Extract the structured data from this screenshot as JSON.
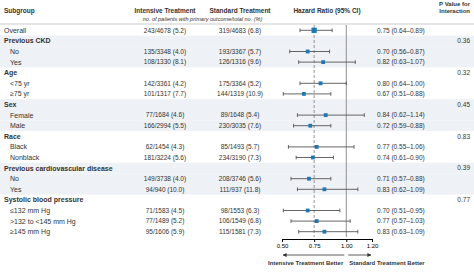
{
  "chart_data": {
    "type": "forest",
    "title": "Hazard Ratio (95% CI)",
    "subtitle": "no. of patients with primary outcome/total no. (%)",
    "category_label": "Subgroup",
    "categories": [
      "Overall",
      "Previous CKD",
      "No",
      "Yes",
      "Age",
      "<75 yr",
      "≥75 yr",
      "Sex",
      "Female",
      "Male",
      "Race",
      "Black",
      "Nonblack",
      "Previous cardiovascular disease",
      "No",
      "Yes",
      "Systolic blood pressure",
      "≤132 mm Hg",
      ">132 to <145 mm Hg",
      "≥145 mm Hg"
    ],
    "columns": [
      {
        "name": "Intensive Treatment",
        "values": [
          "243/4678 (5.2)",
          null,
          "135/3348 (4.0)",
          "108/1330 (8.1)",
          null,
          "142/3361 (4.2)",
          "101/1317 (7.7)",
          null,
          "77/1684 (4.6)",
          "166/2994 (5.5)",
          null,
          "62/1454 (4.3)",
          "181/3224 (5.6)",
          null,
          "149/3738 (4.0)",
          "94/940 (10.0)",
          null,
          "71/1583 (4.5)",
          "77/1489 (5.2)",
          "95/1606 (5.9)"
        ]
      },
      {
        "name": "Standard Treatment",
        "values": [
          "319/4683 (6.8)",
          null,
          "193/3367 (5.7)",
          "126/1316 (9.6)",
          null,
          "175/3364 (5.2)",
          "144/1319 (10.9)",
          null,
          "89/1648 (5.4)",
          "230/3035 (7.6)",
          null,
          "85/1493 (5.7)",
          "234/3190 (7.3)",
          null,
          "208/3746 (5.6)",
          "111/937 (11.8)",
          null,
          "98/1553 (6.3)",
          "106/1549 (6.8)",
          "115/1581 (7.3)"
        ]
      }
    ],
    "values": [
      0.75,
      null,
      0.7,
      0.82,
      null,
      0.8,
      0.67,
      null,
      0.84,
      0.72,
      null,
      0.77,
      0.74,
      null,
      0.71,
      0.83,
      null,
      0.7,
      0.77,
      0.83
    ],
    "ci_low": [
      0.64,
      null,
      0.56,
      0.63,
      null,
      0.64,
      0.51,
      null,
      0.62,
      0.59,
      null,
      0.55,
      0.61,
      null,
      0.57,
      0.62,
      null,
      0.51,
      0.57,
      0.63
    ],
    "ci_high": [
      0.89,
      null,
      0.87,
      1.07,
      null,
      1.0,
      0.88,
      null,
      1.14,
      0.88,
      null,
      1.06,
      0.9,
      null,
      0.88,
      1.09,
      null,
      0.95,
      1.03,
      1.09
    ],
    "value_labels": [
      "0.75 (0.64–0.89)",
      null,
      "0.70 (0.56–0.87)",
      "0.82 (0.63–1.07)",
      null,
      "0.80 (0.64–1.00)",
      "0.67 (0.51–0.88)",
      null,
      "0.84 (0.62–1.14)",
      "0.72 (0.59–0.88)",
      null,
      "0.77 (0.55–1.06)",
      "0.74 (0.61–0.90)",
      null,
      "0.71 (0.57–0.88)",
      "0.83 (0.62–1.09)",
      null,
      "0.70 (0.51–0.95)",
      "0.77 (0.57–1.03)",
      "0.83 (0.63–1.09)"
    ],
    "p_value_label": "P Value for\nInteraction",
    "p_values": [
      null,
      0.36,
      null,
      null,
      0.32,
      null,
      null,
      0.45,
      null,
      null,
      0.83,
      null,
      null,
      0.39,
      null,
      null,
      0.77,
      null,
      null,
      null
    ],
    "xlim": [
      0.5,
      1.2
    ],
    "xticks": [
      {
        "value": 0.5,
        "label": "0.50"
      },
      0.75,
      {
        "value": 1.0,
        "label": "1.00"
      },
      {
        "value": 1.2,
        "label": "1.20"
      }
    ],
    "reference_lines": [
      {
        "value": 0.75,
        "line_style": "dashed"
      },
      {
        "value": 1.0,
        "line_style": "solid"
      }
    ],
    "annotations": [
      "Intensive Treatment Better",
      "Standard Treatment Better"
    ]
  }
}
